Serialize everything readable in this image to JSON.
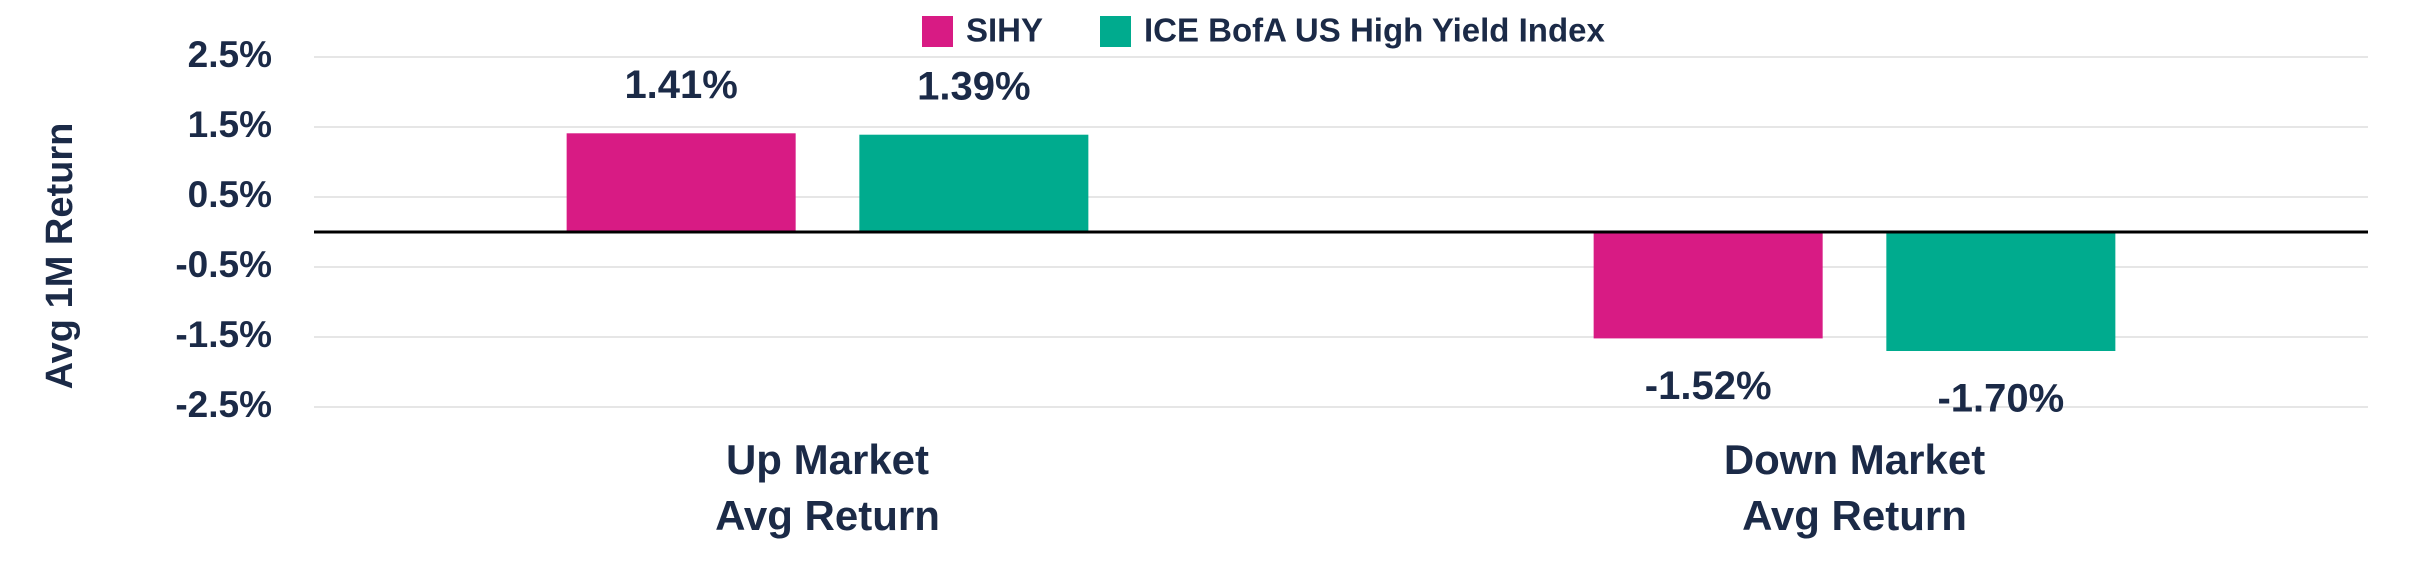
{
  "chart_data": {
    "type": "bar",
    "y_label": "Avg 1M  Return",
    "categories": [
      "Up Market\nAvg Return",
      "Down Market\nAvg Return"
    ],
    "series": [
      {
        "name": "SIHY",
        "color": "#d81b84",
        "values": [
          1.41,
          -1.52
        ],
        "value_labels": [
          "1.41%",
          "-1.52%"
        ]
      },
      {
        "name": "ICE BofA US High Yield Index",
        "color": "#00ab8e",
        "values": [
          1.39,
          -1.7
        ],
        "value_labels": [
          "1.39%",
          "-1.70%"
        ]
      }
    ],
    "ylim": [
      -2.5,
      2.5
    ],
    "yticks": [
      {
        "value": 2.5,
        "label": "2.5%"
      },
      {
        "value": 1.5,
        "label": "1.5%"
      },
      {
        "value": 0.5,
        "label": "0.5%"
      },
      {
        "value": -0.5,
        "label": "-0.5%"
      },
      {
        "value": -1.5,
        "label": "-1.5%"
      },
      {
        "value": -2.5,
        "label": "-2.5%"
      }
    ],
    "grid": true,
    "legend": "top"
  }
}
